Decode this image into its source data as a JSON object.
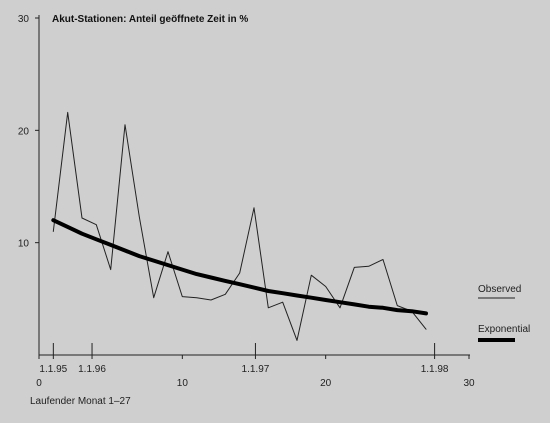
{
  "chart_data": {
    "type": "line",
    "title": "Akut-Stationen: Anteil geöffnete Zeit in %",
    "xlabel": "Laufender Monat 1–27",
    "ylabel": "",
    "xlim": [
      0,
      30
    ],
    "ylim": [
      0,
      30
    ],
    "x_ticks": [
      {
        "value": 0,
        "label": "0"
      },
      {
        "value": 10,
        "label": "10"
      },
      {
        "value": 20,
        "label": "20"
      },
      {
        "value": 30,
        "label": "30"
      }
    ],
    "y_ticks": [
      {
        "value": 10,
        "label": "10"
      },
      {
        "value": 20,
        "label": "20"
      },
      {
        "value": 30,
        "label": "30"
      }
    ],
    "date_markers": [
      {
        "value": 1,
        "label": "1.1.95"
      },
      {
        "value": 3.7,
        "label": "1.1.96"
      },
      {
        "value": 15.1,
        "label": "1.1.97"
      },
      {
        "value": 27.6,
        "label": "1.1.98"
      }
    ],
    "legend_position": "right",
    "grid": false,
    "series": [
      {
        "name": "Observed",
        "style": "thin",
        "color": "#222222",
        "x": [
          1,
          2,
          3,
          4,
          5,
          6,
          7,
          8,
          9,
          10,
          11,
          12,
          13,
          14,
          15,
          16,
          17,
          18,
          19,
          20,
          21,
          22,
          23,
          24,
          25,
          26,
          27
        ],
        "y": [
          11,
          21.6,
          12.2,
          11.6,
          7.6,
          20.5,
          12.3,
          5.1,
          9.2,
          5.2,
          5.1,
          4.9,
          5.4,
          7.3,
          13.1,
          4.2,
          4.7,
          1.3,
          7.1,
          6.1,
          4.2,
          7.8,
          7.9,
          8.5,
          4.4,
          3.9,
          2.3
        ]
      },
      {
        "name": "Exponential",
        "style": "thick",
        "color": "#000000",
        "x": [
          1,
          2,
          3,
          4,
          5,
          6,
          7,
          8,
          9,
          10,
          11,
          12,
          13,
          14,
          15,
          16,
          17,
          18,
          19,
          20,
          21,
          22,
          23,
          24,
          25,
          26,
          27
        ],
        "y": [
          12.0,
          11.4,
          10.8,
          10.3,
          9.8,
          9.3,
          8.8,
          8.4,
          8.0,
          7.6,
          7.2,
          6.9,
          6.6,
          6.3,
          6.0,
          5.7,
          5.5,
          5.3,
          5.1,
          4.9,
          4.7,
          4.5,
          4.3,
          4.2,
          4.0,
          3.9,
          3.7
        ]
      }
    ]
  }
}
